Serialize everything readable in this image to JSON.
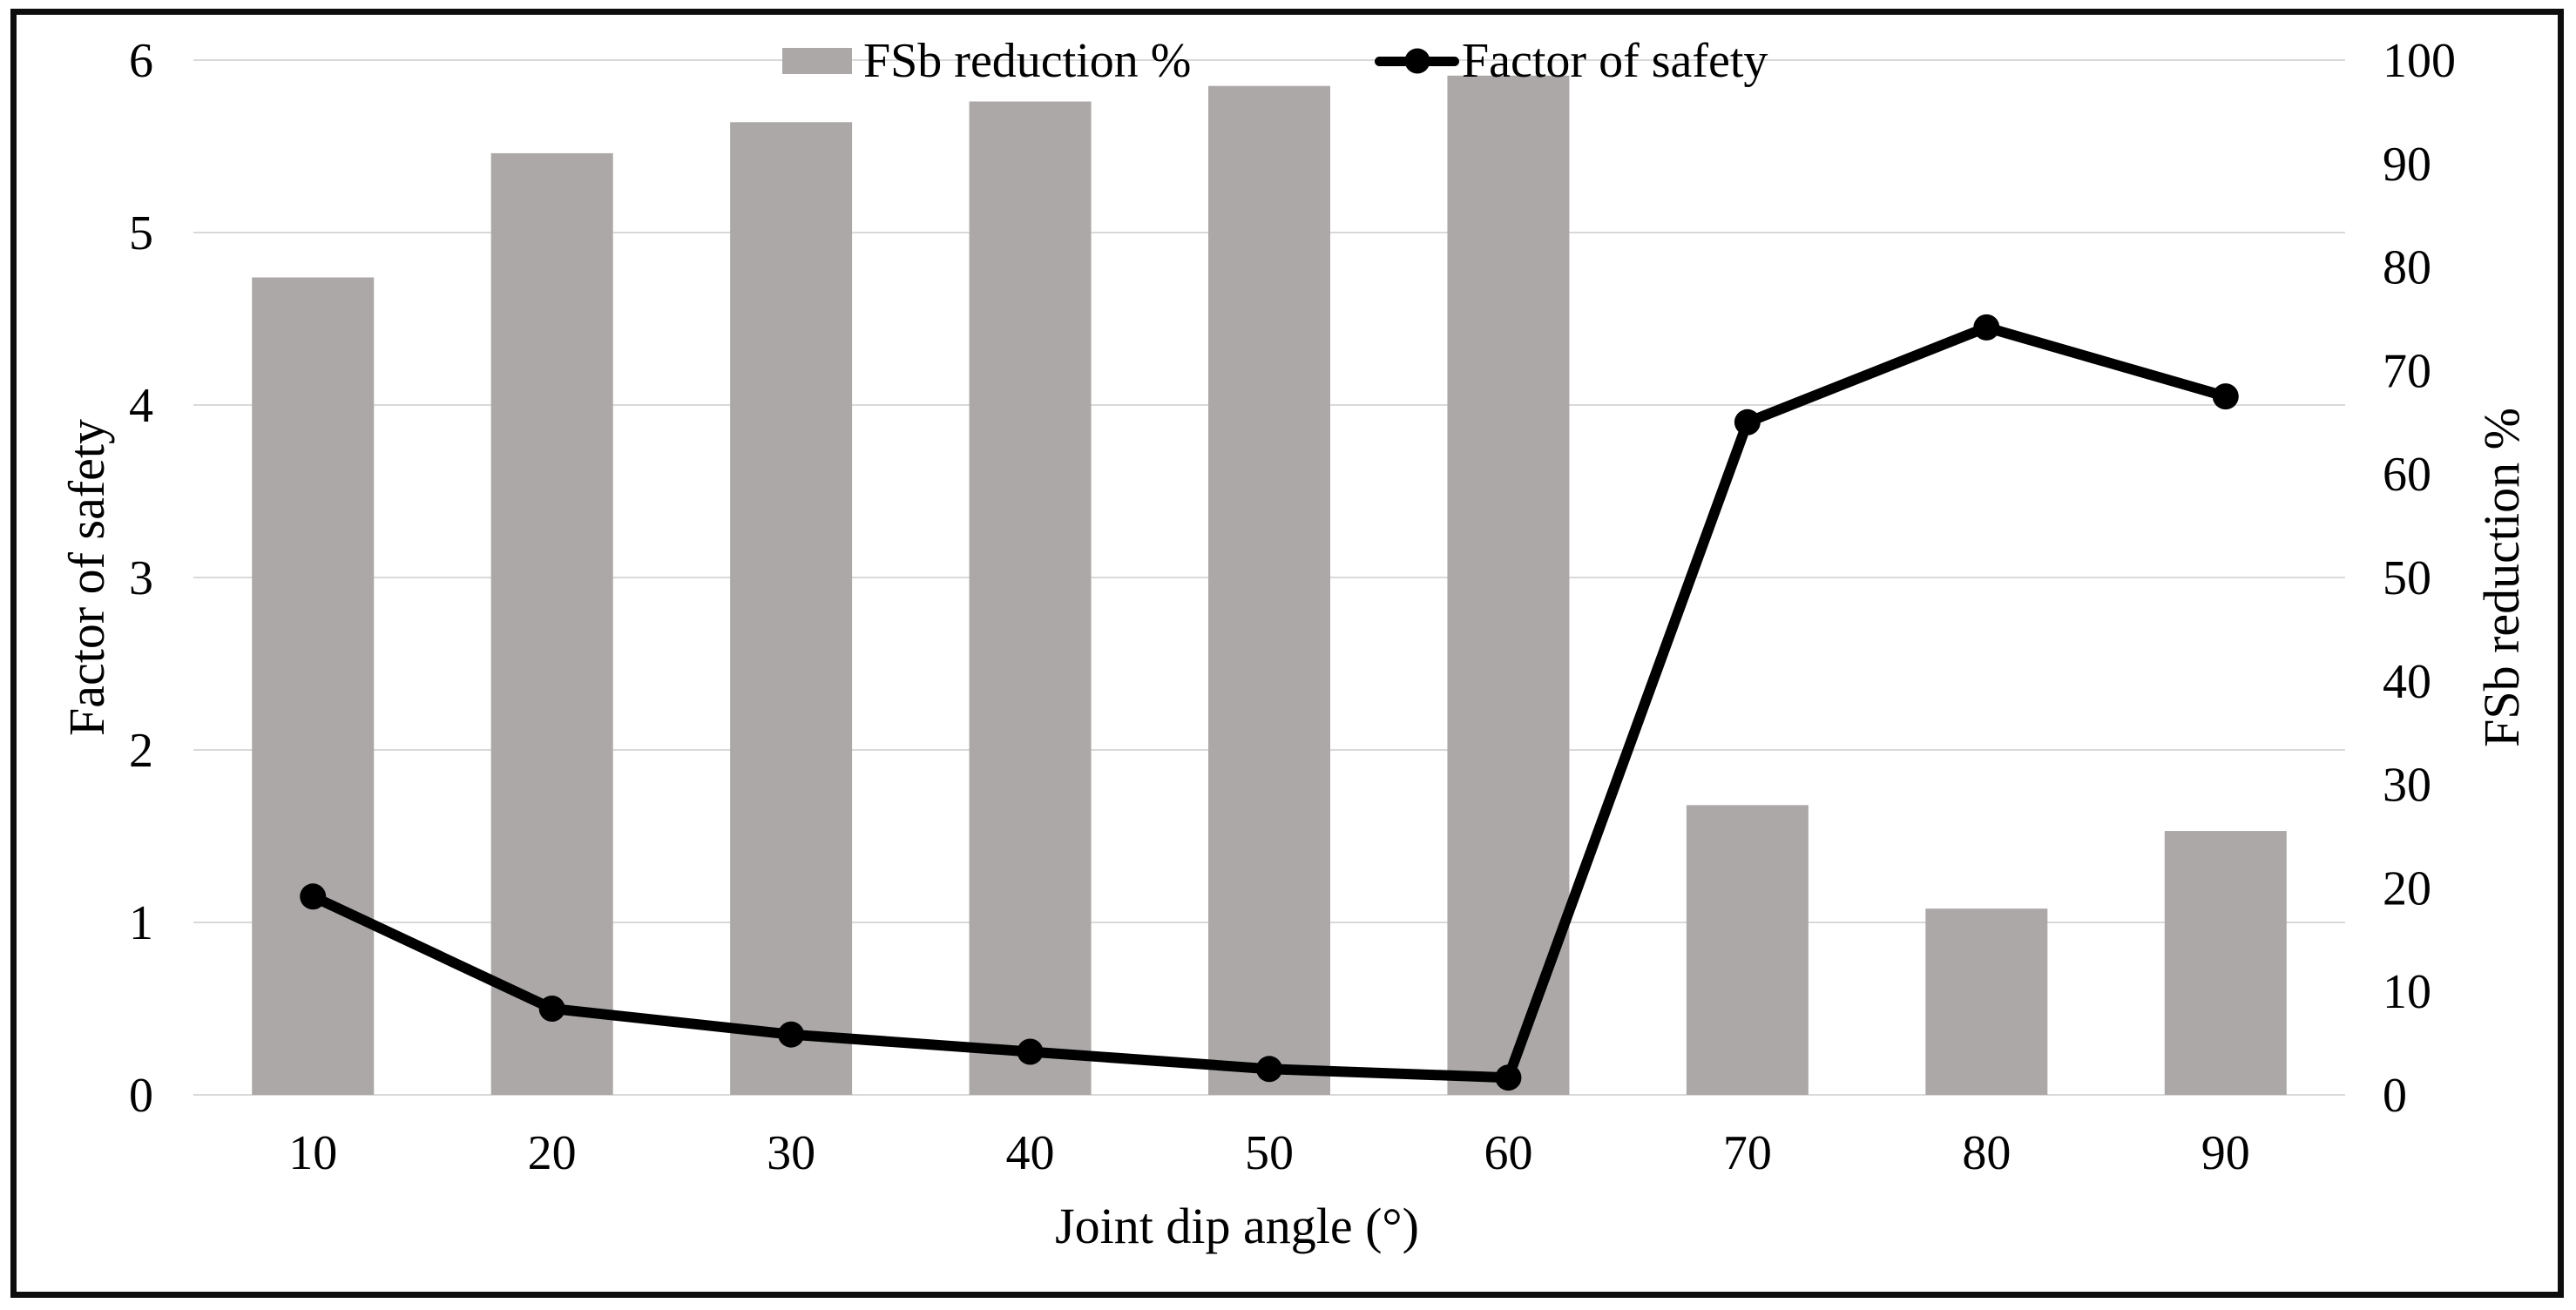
{
  "style": {
    "bar_color": "#ACA8A8",
    "line_color": "#000000",
    "grid_color": "#D9D9D9",
    "text_color": "#000000",
    "frame_border_color": "#0d0d0d",
    "background": "#ffffff"
  },
  "legend": {
    "position": "top-center",
    "items": [
      {
        "label": "FSb reduction %",
        "marker": "bar-swatch"
      },
      {
        "label": "Factor of safety",
        "marker": "line-with-dot"
      }
    ]
  },
  "chart_data": {
    "type": "combo (bar + line, dual axis)",
    "title": "",
    "xlabel": "Joint dip angle (°)",
    "ylabel_left": "Factor of safety",
    "ylabel_right": "FSb reduction %",
    "categories": [
      10,
      20,
      30,
      40,
      50,
      60,
      70,
      80,
      90
    ],
    "series": [
      {
        "name": "FSb reduction %",
        "type": "bar",
        "axis": "right",
        "color": "#ACA8A8",
        "values": [
          79,
          91,
          94,
          96,
          97.5,
          98.5,
          28,
          18,
          25.5
        ]
      },
      {
        "name": "Factor of safety",
        "type": "line",
        "axis": "left",
        "color": "#000000",
        "values": [
          1.15,
          0.5,
          0.35,
          0.25,
          0.15,
          0.1,
          3.9,
          4.45,
          4.05
        ]
      }
    ],
    "left_axis": {
      "min": 0,
      "max": 6,
      "step": 1,
      "label": "Factor of safety"
    },
    "right_axis": {
      "min": 0,
      "max": 100,
      "step": 10,
      "label": "FSb reduction %"
    },
    "grid": "horizontal gridlines at left-axis integers 0-6",
    "legend_position": "top-center"
  }
}
